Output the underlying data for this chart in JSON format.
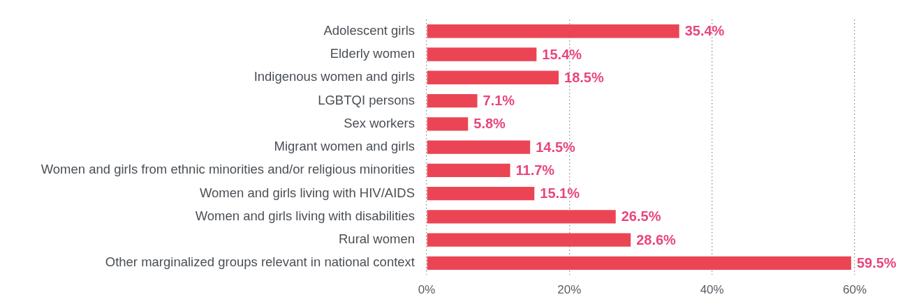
{
  "chart_data": {
    "type": "bar",
    "orientation": "horizontal",
    "categories": [
      "Adolescent girls",
      "Elderly women",
      "Indigenous women and girls",
      "LGBTQI persons",
      "Sex workers",
      "Migrant women and girls",
      "Women and girls from ethnic minorities and/or religious minorities",
      "Women and girls living with HIV/AIDS",
      "Women and girls living with disabilities",
      "Rural women",
      "Other marginalized groups relevant in national context"
    ],
    "values": [
      35.4,
      15.4,
      18.5,
      7.1,
      5.8,
      14.5,
      11.7,
      15.1,
      26.5,
      28.6,
      59.5
    ],
    "value_labels": [
      "35.4%",
      "15.4%",
      "18.5%",
      "7.1%",
      "5.8%",
      "14.5%",
      "11.7%",
      "15.1%",
      "26.5%",
      "28.6%",
      "59.5%"
    ],
    "color": "#eb4555",
    "xlim": [
      0,
      60
    ],
    "xticks": [
      {
        "value": 0,
        "label": "0%"
      },
      {
        "value": 20,
        "label": "20%"
      },
      {
        "value": 40,
        "label": "40%"
      },
      {
        "value": 60,
        "label": "60%"
      }
    ],
    "grid": "x"
  }
}
